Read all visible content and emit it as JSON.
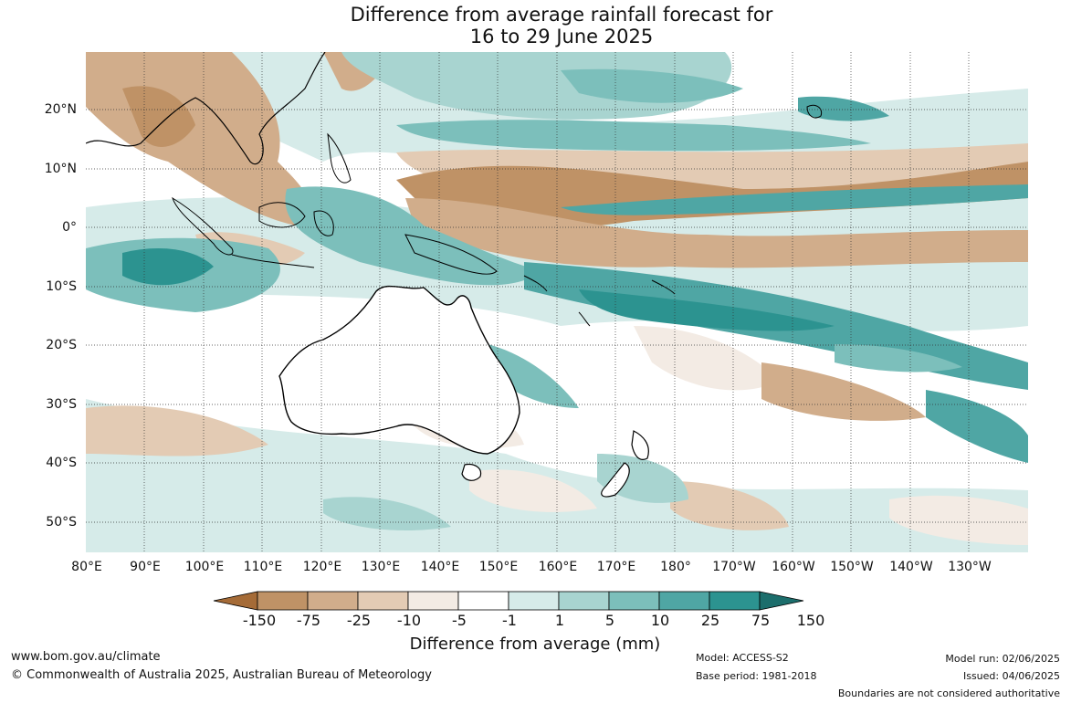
{
  "title": {
    "line1": "Difference from average rainfall forecast for",
    "line2": "16 to 29 June 2025"
  },
  "map": {
    "lat_labels": [
      "20°N",
      "10°N",
      "0°",
      "10°S",
      "20°S",
      "30°S",
      "40°S",
      "50°S"
    ],
    "lon_labels": [
      "80°E",
      "90°E",
      "100°E",
      "110°E",
      "120°E",
      "130°E",
      "140°E",
      "150°E",
      "160°E",
      "170°E",
      "180°",
      "170°W",
      "160°W",
      "150°W",
      "140°W",
      "130°W"
    ]
  },
  "legend": {
    "ticks": [
      "-150",
      "-75",
      "-25",
      "-10",
      "-5",
      "-1",
      "1",
      "5",
      "10",
      "25",
      "75",
      "150"
    ],
    "colors": [
      "#a56b37",
      "#bf9266",
      "#d1ad8b",
      "#e3cbb4",
      "#f3ebe4",
      "#ffffff",
      "#d6ebe9",
      "#a8d4d0",
      "#7cbfbb",
      "#4fa6a4",
      "#2c9390",
      "#1c6e6c"
    ],
    "title": "Difference from average (mm)"
  },
  "footer": {
    "site": "www.bom.gov.au/climate",
    "copyright": "© Commonwealth of Australia 2025, Australian Bureau of Meteorology",
    "model": "Model: ACCESS-S2",
    "base_period": "Base period: 1981-2018",
    "model_run": "Model run: 02/06/2025",
    "issued": "Issued: 04/06/2025",
    "disclaimer": "Boundaries are not considered authoritative"
  }
}
